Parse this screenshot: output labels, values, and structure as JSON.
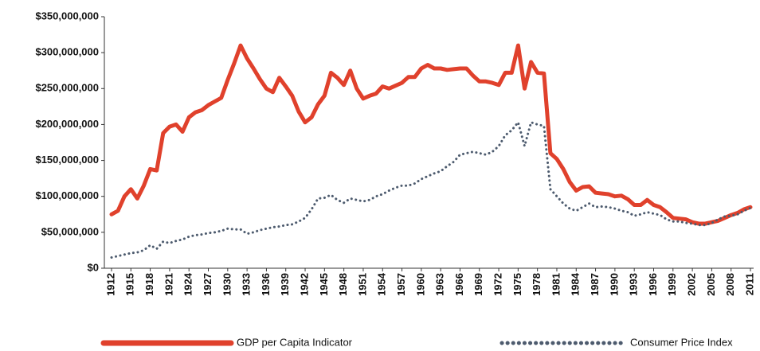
{
  "chart_data": {
    "type": "line",
    "x": [
      1912,
      1913,
      1914,
      1915,
      1916,
      1917,
      1918,
      1919,
      1920,
      1921,
      1922,
      1923,
      1924,
      1925,
      1926,
      1927,
      1928,
      1929,
      1930,
      1931,
      1932,
      1933,
      1934,
      1935,
      1936,
      1937,
      1938,
      1939,
      1940,
      1941,
      1942,
      1943,
      1944,
      1945,
      1946,
      1947,
      1948,
      1949,
      1950,
      1951,
      1952,
      1953,
      1954,
      1955,
      1956,
      1957,
      1958,
      1959,
      1960,
      1961,
      1962,
      1963,
      1964,
      1965,
      1966,
      1967,
      1968,
      1969,
      1970,
      1971,
      1972,
      1973,
      1974,
      1975,
      1976,
      1977,
      1978,
      1979,
      1980,
      1981,
      1982,
      1983,
      1984,
      1985,
      1986,
      1987,
      1988,
      1989,
      1990,
      1991,
      1992,
      1993,
      1994,
      1995,
      1996,
      1997,
      1998,
      1999,
      2000,
      2001,
      2002,
      2003,
      2004,
      2005,
      2006,
      2007,
      2008,
      2009,
      2010,
      2011
    ],
    "series": [
      {
        "name": "GDP per Capita Indicator",
        "color": "#e0412c",
        "values": [
          75000000,
          80000000,
          100000000,
          110000000,
          97000000,
          115000000,
          138000000,
          136000000,
          188000000,
          197000000,
          200000000,
          190000000,
          210000000,
          217000000,
          220000000,
          227000000,
          232000000,
          237000000,
          262000000,
          285000000,
          310000000,
          292000000,
          278000000,
          263000000,
          250000000,
          245000000,
          265000000,
          253000000,
          240000000,
          218000000,
          203000000,
          210000000,
          228000000,
          240000000,
          272000000,
          265000000,
          255000000,
          275000000,
          250000000,
          236000000,
          240000000,
          243000000,
          253000000,
          250000000,
          254000000,
          258000000,
          266000000,
          266000000,
          278000000,
          283000000,
          278000000,
          278000000,
          276000000,
          277000000,
          278000000,
          278000000,
          268000000,
          260000000,
          260000000,
          258000000,
          255000000,
          272000000,
          272000000,
          310000000,
          250000000,
          287000000,
          272000000,
          271000000,
          160000000,
          152000000,
          138000000,
          120000000,
          108000000,
          113000000,
          114000000,
          105000000,
          104000000,
          103000000,
          100000000,
          101000000,
          96000000,
          88000000,
          88000000,
          95000000,
          88000000,
          85000000,
          78000000,
          70000000,
          69000000,
          68000000,
          64000000,
          62000000,
          62000000,
          64000000,
          66000000,
          70000000,
          74000000,
          77000000,
          82000000,
          85000000
        ]
      },
      {
        "name": "Consumer Price Index",
        "color": "#4d5b6e",
        "values": [
          15000000,
          17000000,
          19000000,
          21000000,
          22000000,
          25000000,
          32000000,
          27000000,
          37000000,
          35000000,
          38000000,
          40000000,
          44000000,
          46000000,
          47000000,
          49000000,
          50000000,
          52000000,
          55000000,
          54000000,
          54000000,
          48000000,
          50000000,
          53000000,
          55000000,
          57000000,
          58000000,
          60000000,
          61000000,
          65000000,
          70000000,
          82000000,
          97000000,
          98000000,
          102000000,
          95000000,
          91000000,
          97000000,
          95000000,
          93000000,
          95000000,
          100000000,
          103000000,
          108000000,
          112000000,
          115000000,
          115000000,
          118000000,
          124000000,
          128000000,
          132000000,
          135000000,
          142000000,
          148000000,
          158000000,
          160000000,
          162000000,
          160000000,
          158000000,
          162000000,
          170000000,
          185000000,
          192000000,
          203000000,
          170000000,
          203000000,
          200000000,
          198000000,
          110000000,
          100000000,
          90000000,
          83000000,
          80000000,
          85000000,
          90000000,
          85000000,
          86000000,
          85000000,
          83000000,
          80000000,
          78000000,
          73000000,
          75000000,
          78000000,
          76000000,
          74000000,
          68000000,
          65000000,
          65000000,
          63000000,
          62000000,
          60000000,
          60000000,
          63000000,
          68000000,
          72000000,
          73000000,
          75000000,
          80000000,
          84000000
        ]
      }
    ],
    "xlim": [
      1912,
      2011
    ],
    "xticks": [
      1912,
      1915,
      1918,
      1921,
      1924,
      1927,
      1930,
      1933,
      1936,
      1939,
      1942,
      1945,
      1948,
      1951,
      1954,
      1957,
      1960,
      1963,
      1966,
      1969,
      1972,
      1975,
      1978,
      1981,
      1984,
      1987,
      1990,
      1993,
      1996,
      1999,
      2002,
      2005,
      2008,
      2011
    ],
    "ylim": [
      0,
      350000000
    ],
    "yticks": [
      {
        "value": 0,
        "label": "$0"
      },
      {
        "value": 50000000,
        "label": "$50,000,000"
      },
      {
        "value": 100000000,
        "label": "$100,000,000"
      },
      {
        "value": 150000000,
        "label": "$150,000,000"
      },
      {
        "value": 200000000,
        "label": "$200,000,000"
      },
      {
        "value": 250000000,
        "label": "$250,000,000"
      },
      {
        "value": 300000000,
        "label": "$300,000,000"
      },
      {
        "value": 350000000,
        "label": "$350,000,000"
      }
    ],
    "legend": "bottom"
  }
}
